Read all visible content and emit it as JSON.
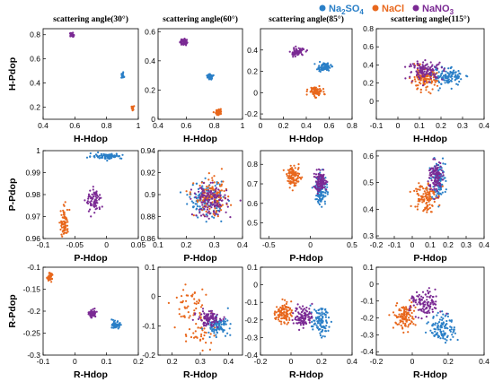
{
  "colors": {
    "na2so4": "#2a7fc7",
    "nacl": "#e8671c",
    "nano3": "#7b2a94"
  },
  "legend": {
    "na2so4_base": "Na",
    "na2so4_sub1": "2",
    "na2so4_mid": "SO",
    "na2so4_sub2": "4",
    "nacl": "NaCl",
    "nano3_base": "NaNO",
    "nano3_sub": "3",
    "placement": "top-right"
  },
  "chart_data": [
    {
      "type": "scatter",
      "title": "scattering angle(30°)",
      "xlabel": "H-Hdop",
      "ylabel": "H-Pdop",
      "xlim": [
        0.4,
        1.0
      ],
      "ylim": [
        0.1,
        0.85
      ],
      "xticks": [
        "0.4",
        "0.6",
        "0.8",
        "1"
      ],
      "yticks": [
        "0.2",
        "0.4",
        "0.6",
        "0.8"
      ],
      "series": [
        {
          "key": "na2so4",
          "centers": [
            [
              0.9,
              0.46
            ]
          ],
          "spread": [
            0.005,
            0.01
          ],
          "n": 25
        },
        {
          "key": "nacl",
          "centers": [
            [
              0.965,
              0.19
            ]
          ],
          "spread": [
            0.004,
            0.01
          ],
          "n": 25
        },
        {
          "key": "nano3",
          "centers": [
            [
              0.58,
              0.8
            ]
          ],
          "spread": [
            0.006,
            0.008
          ],
          "n": 25
        }
      ]
    },
    {
      "type": "scatter",
      "title": "scattering angle(60°)",
      "xlabel": "",
      "ylabel": "",
      "xlim": [
        0.4,
        1.0
      ],
      "ylim": [
        0.0,
        0.62
      ],
      "xticks": [
        "0.4",
        "0.6",
        "0.8",
        "1"
      ],
      "yticks": [
        "0",
        "0.2",
        "0.4",
        "0.6"
      ],
      "series": [
        {
          "key": "na2so4",
          "centers": [
            [
              0.77,
              0.29
            ]
          ],
          "spread": [
            0.009,
            0.009
          ],
          "n": 60
        },
        {
          "key": "nacl",
          "centers": [
            [
              0.83,
              0.05
            ]
          ],
          "spread": [
            0.011,
            0.01
          ],
          "n": 60
        },
        {
          "key": "nano3",
          "centers": [
            [
              0.58,
              0.53
            ]
          ],
          "spread": [
            0.012,
            0.012
          ],
          "n": 60
        }
      ]
    },
    {
      "type": "scatter",
      "title": "scattering angle(85°)",
      "xlabel": "",
      "ylabel": "",
      "xlim": [
        0.0,
        0.8
      ],
      "ylim": [
        -0.25,
        0.6
      ],
      "xticks": [
        "0",
        "0.2",
        "0.4",
        "0.6",
        "0.8"
      ],
      "yticks": [
        "-0.2",
        "0",
        "0.2",
        "0.4"
      ],
      "series": [
        {
          "key": "na2so4",
          "centers": [
            [
              0.555,
              0.24
            ]
          ],
          "spread": [
            0.03,
            0.018
          ],
          "n": 80
        },
        {
          "key": "nacl",
          "centers": [
            [
              0.48,
              0.01
            ]
          ],
          "spread": [
            0.03,
            0.022
          ],
          "n": 80
        },
        {
          "key": "nano3",
          "centers": [
            [
              0.32,
              0.38
            ]
          ],
          "spread": [
            0.03,
            0.018
          ],
          "n": 80
        }
      ]
    },
    {
      "type": "scatter",
      "title": "scattering angle(115°)",
      "xlabel": "",
      "ylabel": "",
      "xlim": [
        -0.1,
        0.4
      ],
      "ylim": [
        -0.2,
        0.8
      ],
      "xticks": [
        "-0.1",
        "0",
        "0.1",
        "0.2",
        "0.3",
        "0.4"
      ],
      "yticks": [
        "0",
        "0.2",
        "0.4",
        "0.6",
        "0.8"
      ],
      "series": [
        {
          "key": "na2so4",
          "centers": [
            [
              0.23,
              0.27
            ]
          ],
          "spread": [
            0.035,
            0.05
          ],
          "n": 120
        },
        {
          "key": "nacl",
          "centers": [
            [
              0.12,
              0.24
            ]
          ],
          "spread": [
            0.03,
            0.06
          ],
          "n": 120
        },
        {
          "key": "nano3",
          "centers": [
            [
              0.13,
              0.34
            ]
          ],
          "spread": [
            0.04,
            0.05
          ],
          "n": 120
        }
      ]
    },
    {
      "type": "scatter",
      "title": "",
      "xlabel": "",
      "ylabel": "P-Pdop",
      "xlim": [
        -0.1,
        0.05
      ],
      "ylim": [
        0.96,
        1.0
      ],
      "xticks": [
        "-0.1",
        "-0.05",
        "0",
        "0.05"
      ],
      "yticks": [
        "0.96",
        "0.97",
        "0.98",
        "0.99",
        "1"
      ],
      "series": [
        {
          "key": "na2so4",
          "centers": [
            [
              0.0,
              0.9975
            ]
          ],
          "spread": [
            0.012,
            0.0006
          ],
          "n": 80
        },
        {
          "key": "nacl",
          "centers": [
            [
              -0.066,
              0.967
            ]
          ],
          "spread": [
            0.003,
            0.0035
          ],
          "n": 80
        },
        {
          "key": "nano3",
          "centers": [
            [
              -0.02,
              0.977
            ]
          ],
          "spread": [
            0.006,
            0.0025
          ],
          "n": 80
        }
      ]
    },
    {
      "type": "scatter",
      "title": "",
      "xlabel": "",
      "ylabel": "",
      "xlim": [
        0.1,
        0.4
      ],
      "ylim": [
        0.86,
        0.94
      ],
      "xticks": [
        "0.1",
        "0.2",
        "0.3",
        "0.4"
      ],
      "yticks": [
        "0.86",
        "0.88",
        "0.9",
        "0.92",
        "0.94"
      ],
      "series": [
        {
          "key": "na2so4",
          "centers": [
            [
              0.27,
              0.895
            ]
          ],
          "spread": [
            0.03,
            0.008
          ],
          "n": 130
        },
        {
          "key": "nacl",
          "centers": [
            [
              0.29,
              0.897
            ]
          ],
          "spread": [
            0.03,
            0.008
          ],
          "n": 130
        },
        {
          "key": "nano3",
          "centers": [
            [
              0.285,
              0.894
            ]
          ],
          "spread": [
            0.03,
            0.007
          ],
          "n": 130
        }
      ]
    },
    {
      "type": "scatter",
      "title": "",
      "xlabel": "",
      "ylabel": "",
      "xlim": [
        -0.6,
        0.5
      ],
      "ylim": [
        0.42,
        0.87
      ],
      "xticks": [
        "-0.5",
        "0",
        "0.5"
      ],
      "yticks": [
        "0.5",
        "0.6",
        "0.7",
        "0.8"
      ],
      "series": [
        {
          "key": "na2so4",
          "centers": [
            [
              0.13,
              0.67
            ]
          ],
          "spread": [
            0.035,
            0.04
          ],
          "n": 110
        },
        {
          "key": "nacl",
          "centers": [
            [
              -0.2,
              0.74
            ]
          ],
          "spread": [
            0.04,
            0.025
          ],
          "n": 100
        },
        {
          "key": "nano3",
          "centers": [
            [
              0.12,
              0.71
            ]
          ],
          "spread": [
            0.04,
            0.025
          ],
          "n": 100
        }
      ]
    },
    {
      "type": "scatter",
      "title": "",
      "xlabel": "",
      "ylabel": "",
      "xlim": [
        -0.2,
        0.4
      ],
      "ylim": [
        0.29,
        0.62
      ],
      "xticks": [
        "-0.2",
        "-0.1",
        "0",
        "0.1",
        "0.2",
        "0.3",
        "0.4"
      ],
      "yticks": [
        "0.3",
        "0.4",
        "0.5",
        "0.6"
      ],
      "series": [
        {
          "key": "na2so4",
          "centers": [
            [
              0.145,
              0.51
            ]
          ],
          "spread": [
            0.02,
            0.035
          ],
          "n": 110
        },
        {
          "key": "nacl",
          "centers": [
            [
              0.07,
              0.45
            ]
          ],
          "spread": [
            0.03,
            0.03
          ],
          "n": 110
        },
        {
          "key": "nano3",
          "centers": [
            [
              0.13,
              0.52
            ]
          ],
          "spread": [
            0.02,
            0.03
          ],
          "n": 100
        }
      ]
    },
    {
      "type": "scatter",
      "title": "",
      "xlabel": "R-Hdop",
      "ylabel": "R-Pdop",
      "xlim": [
        -0.1,
        0.2
      ],
      "ylim": [
        -0.3,
        -0.1
      ],
      "xticks": [
        "-0.1",
        "0",
        "0.1",
        "0.2"
      ],
      "yticks": [
        "-0.3",
        "-0.25",
        "-0.2",
        "-0.15",
        "-0.1"
      ],
      "series": [
        {
          "key": "na2so4",
          "centers": [
            [
              0.13,
              -0.232
            ]
          ],
          "spread": [
            0.006,
            0.004
          ],
          "n": 60
        },
        {
          "key": "nacl",
          "centers": [
            [
              -0.08,
              -0.122
            ]
          ],
          "spread": [
            0.004,
            0.004
          ],
          "n": 50
        },
        {
          "key": "nano3",
          "centers": [
            [
              0.055,
              -0.205
            ]
          ],
          "spread": [
            0.005,
            0.004
          ],
          "n": 60
        }
      ]
    },
    {
      "type": "scatter",
      "title": "",
      "xlabel": "",
      "ylabel": "",
      "xlim": [
        0.15,
        0.45
      ],
      "ylim": [
        -0.2,
        0.1
      ],
      "xticks": [
        "0.2",
        "0.3",
        "0.4"
      ],
      "yticks": [
        "-0.2",
        "-0.1",
        "0",
        "0.1"
      ],
      "series": [
        {
          "key": "nacl",
          "centers": [
            [
              0.26,
              -0.03
            ],
            [
              0.3,
              -0.12
            ]
          ],
          "spread": [
            0.03,
            0.04
          ],
          "n": 90
        },
        {
          "key": "na2so4",
          "centers": [
            [
              0.36,
              -0.1
            ]
          ],
          "spread": [
            0.02,
            0.014
          ],
          "n": 100
        },
        {
          "key": "nano3",
          "centers": [
            [
              0.33,
              -0.075
            ]
          ],
          "spread": [
            0.02,
            0.013
          ],
          "n": 100
        }
      ]
    },
    {
      "type": "scatter",
      "title": "",
      "xlabel": "",
      "ylabel": "",
      "xlim": [
        -0.2,
        0.4
      ],
      "ylim": [
        -0.4,
        0.1
      ],
      "xticks": [
        "-0.2",
        "0",
        "0.2",
        "0.4"
      ],
      "yticks": [
        "-0.4",
        "-0.3",
        "-0.2",
        "-0.1",
        "0",
        "0.1"
      ],
      "series": [
        {
          "key": "na2so4",
          "centers": [
            [
              0.19,
              -0.21
            ]
          ],
          "spread": [
            0.03,
            0.04
          ],
          "n": 100
        },
        {
          "key": "nacl",
          "centers": [
            [
              -0.05,
              -0.16
            ]
          ],
          "spread": [
            0.025,
            0.03
          ],
          "n": 100
        },
        {
          "key": "nano3",
          "centers": [
            [
              0.08,
              -0.18
            ]
          ],
          "spread": [
            0.03,
            0.03
          ],
          "n": 100
        }
      ]
    },
    {
      "type": "scatter",
      "title": "",
      "xlabel": "",
      "ylabel": "",
      "xlim": [
        -0.2,
        0.4
      ],
      "ylim": [
        -0.42,
        0.1
      ],
      "xticks": [
        "-0.2",
        "0",
        "0.2",
        "0.4"
      ],
      "yticks": [
        "-0.4",
        "-0.3",
        "-0.2",
        "-0.1",
        "0",
        "0.1"
      ],
      "series": [
        {
          "key": "na2so4",
          "centers": [
            [
              0.17,
              -0.26
            ]
          ],
          "spread": [
            0.035,
            0.04
          ],
          "n": 110
        },
        {
          "key": "nacl",
          "centers": [
            [
              -0.04,
              -0.19
            ]
          ],
          "spread": [
            0.03,
            0.04
          ],
          "n": 110
        },
        {
          "key": "nano3",
          "centers": [
            [
              0.07,
              -0.12
            ]
          ],
          "spread": [
            0.04,
            0.04
          ],
          "n": 110
        }
      ]
    }
  ],
  "bottom_labels": {
    "row1": [
      "H-Hdop",
      "H-Hdop",
      "H-Hdop",
      "H-Hdop"
    ],
    "row2": [
      "P-Hdop",
      "P-Hdop",
      "P-Hdop",
      "P-Hdop"
    ],
    "row3": [
      "R-Hdop",
      "R-Hdop",
      "R-Hdop",
      "R-Hdop"
    ]
  },
  "left_labels": [
    "H-Pdop",
    "P-Pdop",
    "R-Pdop"
  ]
}
